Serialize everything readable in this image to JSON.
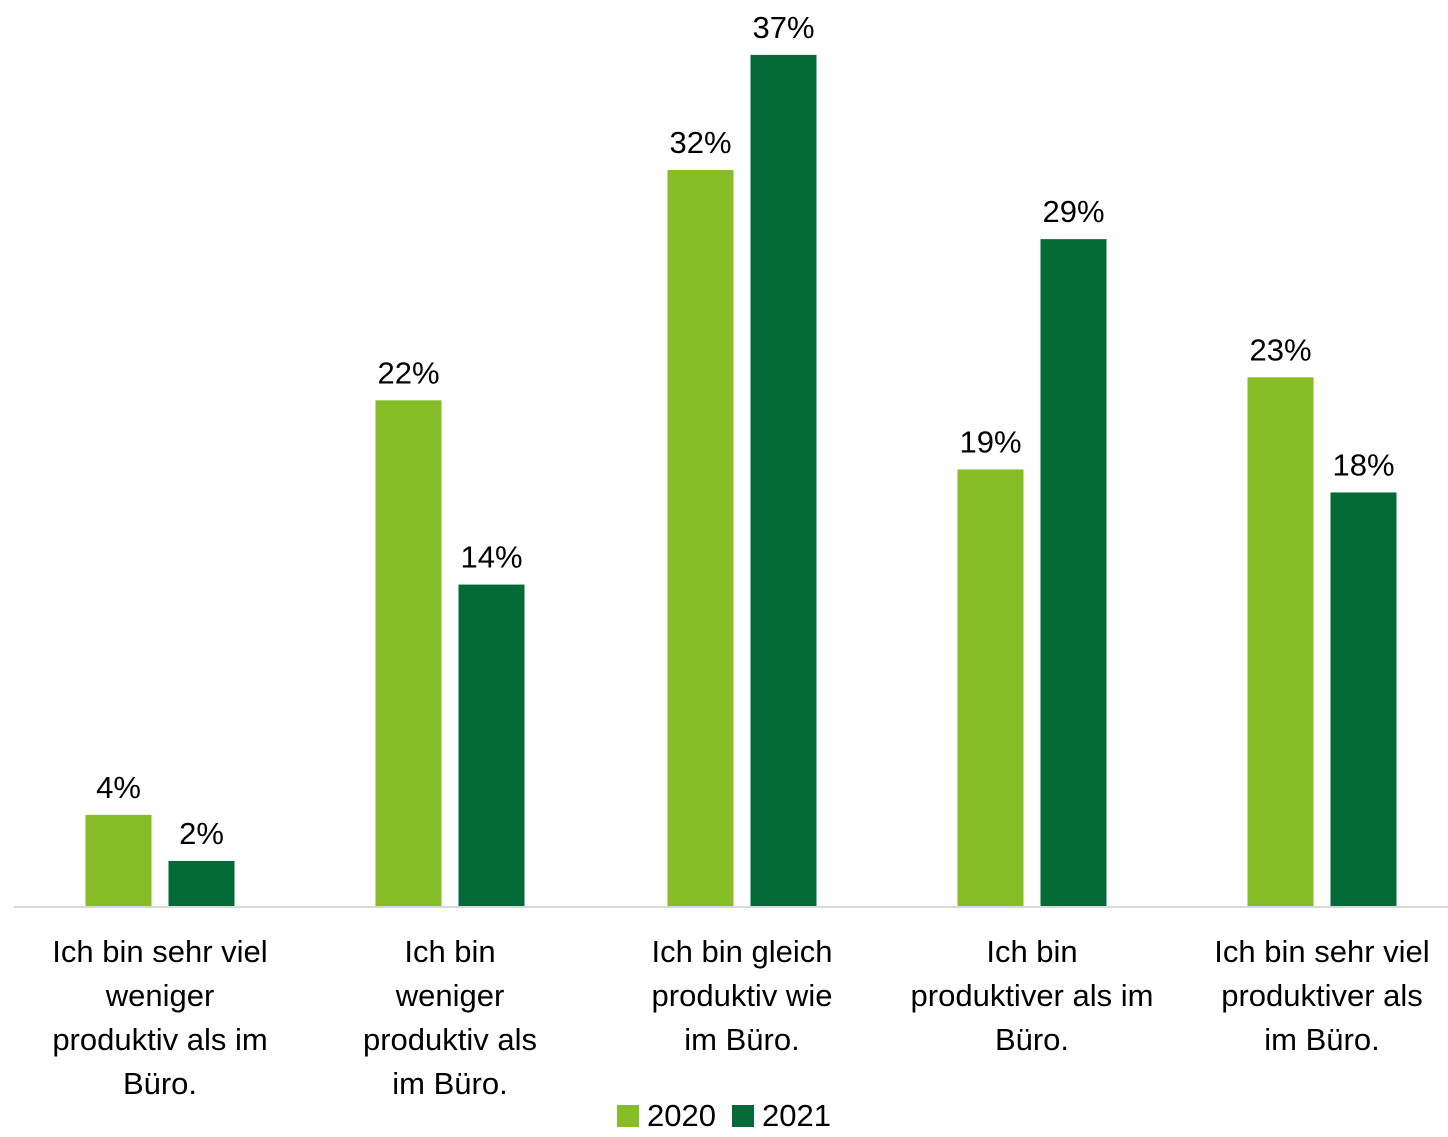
{
  "chart_data": {
    "type": "bar",
    "categories": [
      "Ich bin sehr viel weniger produktiv als im Büro.",
      "Ich bin weniger produktiv als im Büro.",
      "Ich bin gleich produktiv wie im Büro.",
      "Ich bin produktiver als im Büro.",
      "Ich bin sehr viel produktiver als im Büro."
    ],
    "category_lines": [
      "Ich bin sehr viel\nweniger\nproduktiv als im\nBüro.",
      "Ich bin\nweniger\nproduktiv als\nim Büro.",
      "Ich bin gleich\nproduktiv wie\nim Büro.",
      "Ich bin\nproduktiver als im\nBüro.",
      "Ich bin sehr viel\nproduktiver als\nim Büro."
    ],
    "series": [
      {
        "name": "2020",
        "color": "#86bc25",
        "values": [
          4,
          22,
          32,
          19,
          23
        ]
      },
      {
        "name": "2021",
        "color": "#046a38",
        "values": [
          2,
          14,
          37,
          29,
          18
        ]
      }
    ],
    "data_labels": [
      [
        "4%",
        "22%",
        "32%",
        "19%",
        "23%"
      ],
      [
        "2%",
        "14%",
        "37%",
        "29%",
        "18%"
      ]
    ],
    "unit": "%",
    "ylim": [
      0,
      37
    ],
    "grid": false,
    "y_axis_visible": false,
    "legend_position": "bottom",
    "title": "",
    "xlabel": "",
    "ylabel": ""
  }
}
